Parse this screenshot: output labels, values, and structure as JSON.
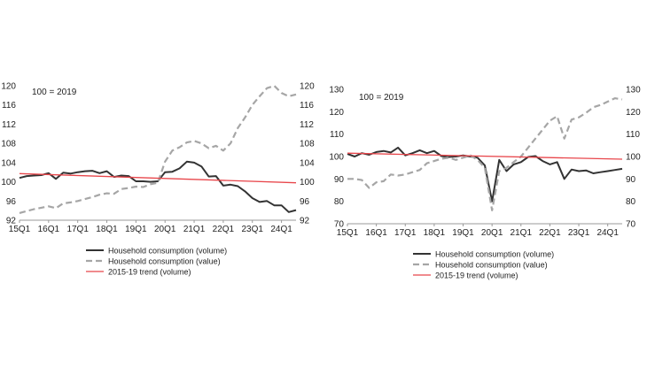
{
  "colors": {
    "volume": "#333333",
    "value": "#a6a6a6",
    "trend": "#e8464b",
    "axis": "#999999"
  },
  "chart_data": [
    {
      "type": "line",
      "title": "",
      "annotation": "100 = 2019",
      "ylim": [
        92,
        120
      ],
      "yticks": [
        92,
        96,
        100,
        104,
        108,
        112,
        116,
        120
      ],
      "y_axes": "both",
      "x_start": "15Q1",
      "x_count": 39,
      "xtick_labels": [
        {
          "index": 0,
          "label": "15Q1"
        },
        {
          "index": 4,
          "label": "16Q1"
        },
        {
          "index": 8,
          "label": "17Q1"
        },
        {
          "index": 12,
          "label": "18Q1"
        },
        {
          "index": 16,
          "label": "19Q1"
        },
        {
          "index": 20,
          "label": "20Q1"
        },
        {
          "index": 24,
          "label": "21Q1"
        },
        {
          "index": 28,
          "label": "22Q1"
        },
        {
          "index": 32,
          "label": "23Q1"
        },
        {
          "index": 36,
          "label": "24Q1"
        }
      ],
      "legend_position": "bottom",
      "series": [
        {
          "name": "Household consumption (volume)",
          "style": "solid",
          "color_key": "volume",
          "values": [
            100.8,
            101.2,
            101.3,
            101.4,
            101.8,
            100.6,
            101.9,
            101.7,
            102.0,
            102.2,
            102.3,
            101.8,
            102.2,
            101.0,
            101.3,
            101.2,
            100.1,
            100.1,
            100.0,
            100.1,
            102.0,
            102.1,
            102.8,
            104.2,
            104.0,
            103.2,
            101.1,
            101.2,
            99.2,
            99.4,
            99.1,
            98.0,
            96.6,
            95.8,
            96.0,
            95.1,
            95.1,
            93.7,
            94.1
          ]
        },
        {
          "name": "Household consumption (value)",
          "style": "dashed",
          "color_key": "value",
          "values": [
            93.5,
            93.9,
            94.3,
            94.6,
            94.9,
            94.5,
            95.5,
            95.7,
            96.0,
            96.4,
            96.8,
            97.3,
            97.6,
            97.5,
            98.5,
            98.7,
            99.0,
            98.9,
            99.5,
            99.8,
            104.2,
            106.5,
            107.2,
            108.2,
            108.5,
            108.0,
            107.0,
            107.5,
            106.5,
            108.0,
            111.2,
            113.4,
            116.0,
            117.8,
            119.5,
            120.0,
            118.5,
            117.8,
            118.2
          ]
        },
        {
          "name": "2015-19 trend (volume)",
          "style": "solid",
          "color_key": "trend",
          "values": [
            101.7,
            99.8
          ]
        }
      ]
    },
    {
      "type": "line",
      "title": "",
      "annotation": "100 = 2019",
      "ylim": [
        70,
        130
      ],
      "yticks": [
        70,
        80,
        90,
        100,
        110,
        120,
        130
      ],
      "y_axes": "both",
      "x_start": "15Q1",
      "x_count": 39,
      "xtick_labels": [
        {
          "index": 0,
          "label": "15Q1"
        },
        {
          "index": 4,
          "label": "16Q1"
        },
        {
          "index": 8,
          "label": "17Q1"
        },
        {
          "index": 12,
          "label": "18Q1"
        },
        {
          "index": 16,
          "label": "19Q1"
        },
        {
          "index": 20,
          "label": "20Q1"
        },
        {
          "index": 24,
          "label": "21Q1"
        },
        {
          "index": 28,
          "label": "22Q1"
        },
        {
          "index": 32,
          "label": "23Q1"
        },
        {
          "index": 36,
          "label": "24Q1"
        }
      ],
      "legend_position": "bottom",
      "series": [
        {
          "name": "Household consumption (volume)",
          "style": "solid",
          "color_key": "volume",
          "values": [
            101.2,
            100.0,
            101.5,
            100.8,
            102.0,
            102.5,
            101.8,
            104.0,
            100.5,
            101.5,
            102.8,
            101.5,
            102.5,
            100.2,
            99.8,
            100.0,
            100.5,
            100.0,
            99.5,
            96.0,
            80.0,
            98.5,
            93.5,
            96.5,
            97.5,
            99.8,
            100.2,
            98.0,
            96.5,
            97.5,
            90.0,
            94.2,
            93.5,
            93.8,
            92.5,
            93.0,
            93.5,
            94.0,
            94.5
          ]
        },
        {
          "name": "Household consumption (value)",
          "style": "dashed",
          "color_key": "value",
          "values": [
            90.0,
            90.0,
            89.5,
            86.0,
            88.5,
            89.0,
            92.0,
            91.5,
            92.0,
            93.0,
            94.0,
            97.0,
            98.0,
            99.0,
            99.5,
            98.5,
            99.5,
            100.5,
            98.5,
            95.0,
            76.0,
            93.5,
            95.0,
            97.5,
            100.0,
            104.0,
            108.0,
            112.0,
            116.0,
            118.0,
            108.0,
            116.5,
            117.5,
            119.5,
            122.0,
            123.0,
            124.5,
            126.0,
            125.5
          ]
        },
        {
          "name": "2015-19 trend (volume)",
          "style": "solid",
          "color_key": "trend",
          "values": [
            101.5,
            98.8
          ]
        }
      ]
    }
  ]
}
